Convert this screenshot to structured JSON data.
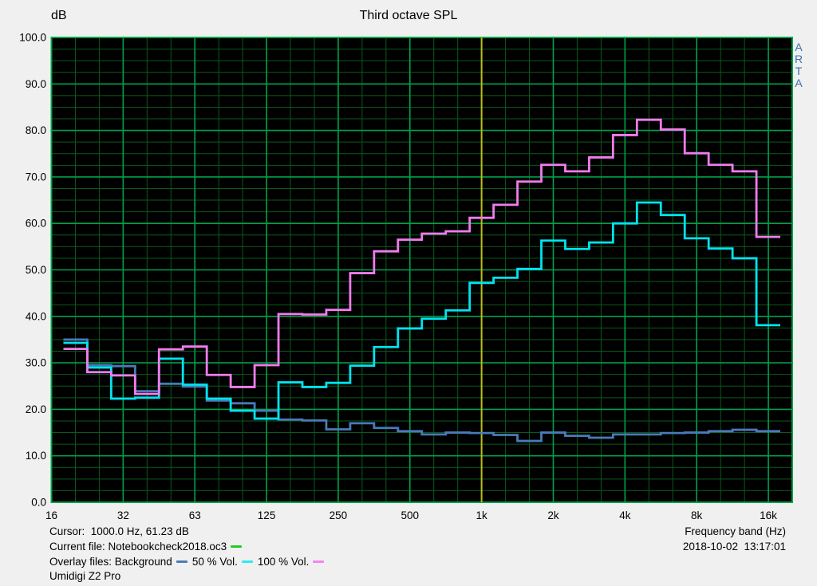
{
  "header": {
    "y_unit": "dB",
    "title": "Third octave SPL"
  },
  "watermark": {
    "text": "ARTA",
    "stacked": "A\nR\nT\nA"
  },
  "footer": {
    "cursor_line": "Cursor:  1000.0 Hz, 61.23 dB",
    "current_file_line": "Current file: Notebookcheck2018.oc3",
    "overlay_files_line": "Overlay files: Background",
    "overlay_50_label": "50 % Vol.",
    "overlay_100_label": "100 % Vol.",
    "device_line": "Umidigi Z2 Pro",
    "x_axis_title": "Frequency band (Hz)",
    "datetime": "2018-10-02  13:17:01"
  },
  "colors": {
    "panel_bg": "#f0f0f0",
    "plot_bg": "#000000",
    "grid_minor": "#0a5a1e",
    "grid_major": "#00a14a",
    "cursor_line": "#bdbd10",
    "watermark_text": "#3e6fae",
    "legend_current_file": "#22cc22",
    "legend_background": "#4a7ab8",
    "legend_50": "#2fe9f5",
    "legend_100": "#f584ee"
  },
  "chart_data": {
    "type": "line",
    "style": "third-octave-step",
    "title": "Third octave SPL",
    "xlabel": "Frequency band (Hz)",
    "ylabel": "dB",
    "ylim": [
      0,
      100
    ],
    "grid": true,
    "cursor": {
      "band_index_from_16Hz": 18,
      "readout": "1000.0 Hz, 61.23 dB"
    },
    "y_tick_values": [
      100,
      90,
      80,
      70,
      60,
      50,
      40,
      30,
      20,
      10,
      0
    ],
    "y_tick_labels": [
      "100.0",
      "90.0",
      "80.0",
      "70.0",
      "60.0",
      "50.0",
      "40.0",
      "30.0",
      "20.0",
      "10.0",
      "0.0"
    ],
    "x_tick_labels": [
      "16",
      "32",
      "63",
      "125",
      "250",
      "500",
      "1k",
      "2k",
      "4k",
      "8k",
      "16k"
    ],
    "x_tick_band_indices": [
      0,
      3,
      6,
      9,
      12,
      15,
      18,
      21,
      24,
      27,
      30
    ],
    "categories": [
      "20",
      "25",
      "31.5",
      "40",
      "50",
      "63",
      "80",
      "100",
      "125",
      "160",
      "200",
      "250",
      "315",
      "400",
      "500",
      "630",
      "800",
      "1k",
      "1.25k",
      "1.6k",
      "2k",
      "2.5k",
      "3.15k",
      "4k",
      "5k",
      "6.3k",
      "8k",
      "10k",
      "12.5k",
      "16k"
    ],
    "first_band_index_from_16Hz": 1,
    "series": [
      {
        "name": "Background",
        "color": "#4a7ab8",
        "values": [
          35.0,
          29.5,
          29.3,
          23.9,
          25.5,
          24.9,
          21.9,
          21.3,
          19.7,
          17.8,
          17.6,
          15.7,
          17.0,
          16.0,
          15.3,
          14.6,
          15.0,
          14.9,
          14.5,
          13.2,
          15.0,
          14.3,
          13.9,
          14.6,
          14.6,
          14.9,
          15.0,
          15.3,
          15.6,
          15.3
        ]
      },
      {
        "name": "50 % Vol.",
        "color": "#00e4ef",
        "values": [
          34.3,
          29.0,
          22.3,
          22.5,
          30.9,
          25.3,
          22.3,
          19.7,
          18.0,
          25.8,
          24.8,
          25.7,
          29.4,
          33.4,
          37.4,
          39.5,
          41.3,
          47.2,
          48.3,
          50.2,
          56.3,
          54.5,
          55.9,
          60.0,
          64.5,
          61.8,
          56.8,
          54.6,
          52.5,
          38.1
        ]
      },
      {
        "name": "100 % Vol.",
        "color": "#f17ced",
        "values": [
          33.0,
          28.0,
          27.3,
          23.3,
          32.9,
          33.5,
          27.4,
          24.8,
          29.5,
          40.5,
          40.4,
          41.4,
          49.3,
          54.0,
          56.5,
          57.8,
          58.3,
          61.2,
          64.0,
          69.0,
          72.6,
          71.2,
          74.2,
          79.0,
          82.3,
          80.2,
          75.1,
          72.6,
          71.2,
          57.1
        ]
      }
    ]
  }
}
